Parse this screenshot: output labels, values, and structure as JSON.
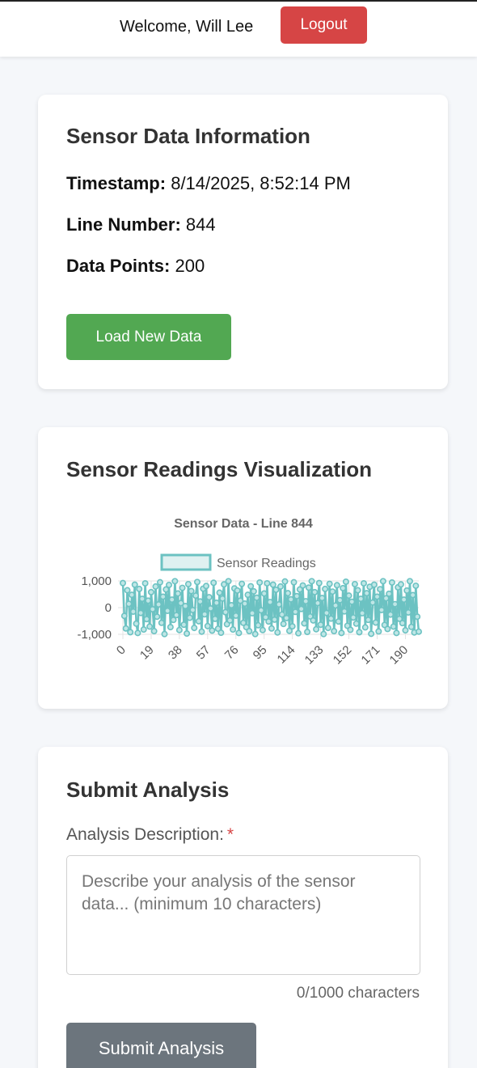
{
  "header": {
    "welcome_text": "Welcome, Will Lee",
    "logout_label": "Logout"
  },
  "info": {
    "title": "Sensor Data Information",
    "timestamp_label": "Timestamp:",
    "timestamp_value": "8/14/2025, 8:52:14 PM",
    "line_label": "Line Number:",
    "line_value": "844",
    "points_label": "Data Points:",
    "points_value": "200",
    "load_button": "Load New Data"
  },
  "visualization": {
    "title": "Sensor Readings Visualization"
  },
  "chart_data": {
    "type": "line",
    "title": "Sensor Data - Line 844",
    "legend": "Sensor Readings",
    "legend_position": "top",
    "ylim": [
      -1000,
      1000
    ],
    "y_ticks": [
      "1,000",
      "0",
      "-1,000"
    ],
    "x_ticks": [
      "0",
      "19",
      "38",
      "57",
      "76",
      "95",
      "114",
      "133",
      "152",
      "171",
      "190"
    ],
    "n_points": 200,
    "series_color": "#6cc2c2",
    "series": [
      {
        "name": "Sensor Readings",
        "values": [
          920,
          -310,
          -780,
          650,
          140,
          -920,
          480,
          -150,
          860,
          -600,
          -950,
          700,
          -200,
          330,
          -820,
          910,
          -430,
          260,
          -710,
          580,
          -60,
          -880,
          790,
          -340,
          120,
          950,
          -570,
          410,
          -990,
          680,
          -120,
          850,
          -730,
          300,
          -460,
          990,
          -280,
          530,
          -840,
          170,
          740,
          -640,
          60,
          -970,
          880,
          -380,
          620,
          -90,
          -760,
          450,
          960,
          -510,
          230,
          -900,
          710,
          -250,
          810,
          -690,
          390,
          -30,
          -860,
          930,
          -420,
          180,
          -790,
          560,
          -940,
          340,
          870,
          -170,
          -620,
          990,
          -480,
          90,
          -820,
          720,
          -300,
          640,
          -950,
          260,
          890,
          -570,
          150,
          -730,
          480,
          -880,
          800,
          -210,
          610,
          -990,
          370,
          -660,
          940,
          -100,
          -840,
          530,
          -360,
          910,
          -520,
          210,
          -780,
          860,
          -450,
          670,
          -930,
          120,
          790,
          -260,
          -610,
          980,
          -390,
          540,
          -870,
          310,
          -700,
          950,
          -160,
          430,
          -960,
          680,
          -50,
          830,
          -590,
          240,
          -910,
          750,
          -330,
          990,
          -480,
          580,
          -810,
          170,
          920,
          -640,
          360,
          -990,
          700,
          -200,
          -760,
          890,
          -410,
          600,
          -880,
          80,
          840,
          -520,
          280,
          -950,
          730,
          -140,
          970,
          -680,
          450,
          -830,
          220,
          -370,
          880,
          -600,
          650,
          -920,
          330,
          -210,
          910,
          -740,
          540,
          -460,
          780,
          -980,
          190,
          860,
          -560,
          410,
          -890,
          690,
          -90,
          990,
          -650,
          350,
          -800,
          520,
          -260,
          940,
          -710,
          130,
          -950,
          760,
          -420,
          870,
          -580,
          300,
          -850,
          640,
          -180,
          990,
          -720,
          470,
          -930,
          820,
          -340,
          -900
        ]
      }
    ]
  },
  "form": {
    "title": "Submit Analysis",
    "label": "Analysis Description:",
    "required_mark": "*",
    "placeholder": "Describe your analysis of the sensor data... (minimum 10 characters)",
    "value": "",
    "char_count": "0/1000 characters",
    "submit_label": "Submit Analysis"
  }
}
